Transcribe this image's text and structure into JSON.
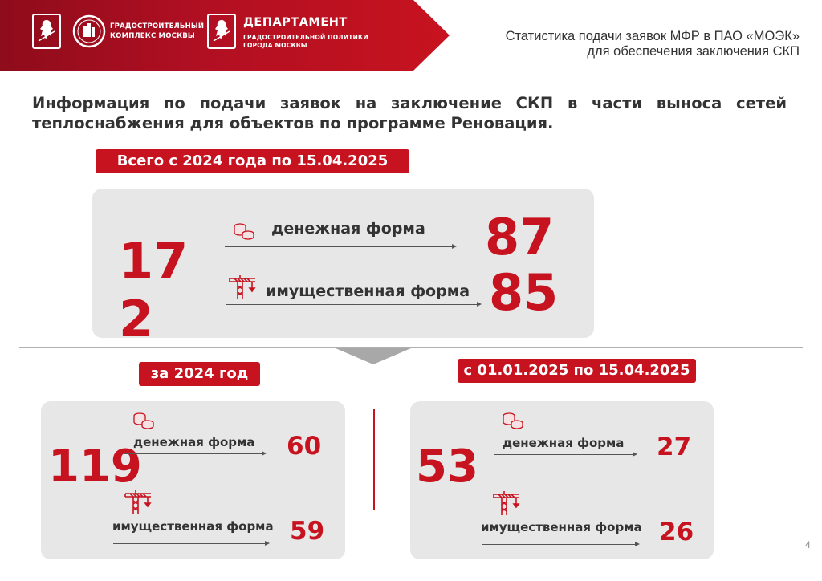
{
  "header": {
    "logo2_line1": "ГРАДОСТРОИТЕЛЬНЫЙ",
    "logo2_line2": "КОМПЛЕКС МОСКВЫ",
    "dept_title": "ДЕПАРТАМЕНТ",
    "dept_line1": "ГРАДОСТРОИТЕЛЬНОЙ ПОЛИТИКИ",
    "dept_line2": "ГОРОДА МОСКВЫ",
    "title_line1": "Статистика подачи заявок МФР в ПАО «МОЭК»",
    "title_line2": "для обеспечения заключения СКП"
  },
  "info_text": "Информация по подачи заявок на заключение СКП в части выноса сетей теплоснабжения для объектов по программе Реновация.",
  "total": {
    "label": "Всего с 2024 года по 15.04.2025",
    "count": "172",
    "cash_label": "денежная форма",
    "cash_value": "87",
    "property_label": "имущественная форма",
    "property_value": "85"
  },
  "year2024": {
    "label": "за 2024 год",
    "count": "119",
    "cash_label": "денежная форма",
    "cash_value": "60",
    "property_label": "имущественная форма",
    "property_value": "59"
  },
  "year2025": {
    "label": "с 01.01.2025 по 15.04.2025",
    "count": "53",
    "cash_label": "денежная форма",
    "cash_value": "27",
    "property_label": "имущественная форма",
    "property_value": "26"
  },
  "page_number": "4",
  "colors": {
    "accent_red": "#c7131f",
    "panel_gray": "#e8e7e7",
    "header_dark_red": "#8e0c1b"
  },
  "icons": [
    "moscow-coat-of-arms-icon",
    "urban-complex-logo-icon",
    "coins-icon",
    "crane-icon"
  ]
}
